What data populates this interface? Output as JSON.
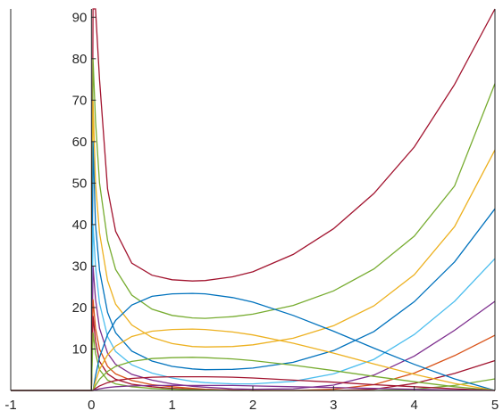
{
  "chart_data": {
    "type": "line",
    "title": "",
    "xlabel": "",
    "ylabel": "",
    "xlim": [
      -1,
      5
    ],
    "ylim": [
      0,
      92
    ],
    "x_ticks": [
      -1,
      0,
      1,
      2,
      3,
      4,
      5
    ],
    "y_ticks": [
      10,
      20,
      30,
      40,
      50,
      60,
      70,
      80,
      90
    ],
    "x_tick_labels": [
      "-1",
      "0",
      "1",
      "2",
      "3",
      "4",
      "5"
    ],
    "y_tick_labels": [
      "10",
      "20",
      "30",
      "40",
      "50",
      "60",
      "70",
      "80",
      "90"
    ],
    "grid": false,
    "legend": "none",
    "x": [
      0.02,
      0.05,
      0.1,
      0.2,
      0.3,
      0.5,
      0.75,
      1.0,
      1.25,
      1.41,
      1.75,
      2.0,
      2.5,
      3.0,
      3.5,
      4.0,
      4.5,
      5.0
    ],
    "series": [
      {
        "color": "#A2142F",
        "values": [
          92,
          92,
          75,
          48.6,
          38.4,
          30.7,
          27.8,
          26.7,
          26.4,
          26.5,
          27.4,
          28.6,
          32.8,
          39.0,
          47.5,
          58.7,
          73.8,
          92.0
        ]
      },
      {
        "color": "#77AC30",
        "values": [
          80,
          65,
          50,
          36.2,
          29.2,
          23.0,
          19.6,
          18.1,
          17.5,
          17.4,
          17.8,
          18.4,
          20.5,
          24.0,
          29.3,
          37.2,
          49.3,
          74.0
        ]
      },
      {
        "color": "#EDB120",
        "values": [
          70,
          50,
          38,
          26.5,
          20.8,
          15.8,
          12.8,
          11.3,
          10.6,
          10.5,
          10.6,
          11.0,
          12.6,
          15.6,
          20.4,
          27.9,
          39.5,
          58.0
        ]
      },
      {
        "color": "#0072BD",
        "values": [
          60,
          40,
          29,
          18.8,
          13.9,
          9.5,
          7.1,
          5.8,
          5.2,
          5.0,
          5.1,
          5.4,
          6.8,
          9.6,
          14.2,
          21.4,
          31.0,
          43.8
        ]
      },
      {
        "color": "#4DBEEE",
        "values": [
          40,
          30,
          21,
          13.0,
          9.4,
          6.2,
          4.2,
          3.0,
          2.2,
          1.9,
          1.6,
          1.6,
          2.2,
          4.0,
          7.5,
          13.5,
          21.5,
          31.8
        ]
      },
      {
        "color": "#7E2F8E",
        "values": [
          30,
          22,
          15,
          9.0,
          6.3,
          3.9,
          2.5,
          1.6,
          1.0,
          0.8,
          0.4,
          0.3,
          0.4,
          1.3,
          3.7,
          8.3,
          14.5,
          21.5
        ]
      },
      {
        "color": "#D95319",
        "values": [
          22,
          15,
          10,
          5.8,
          4.0,
          2.4,
          1.4,
          0.9,
          0.5,
          0.3,
          0.1,
          0.0,
          0.0,
          0.3,
          1.4,
          4.2,
          8.4,
          13.3
        ]
      },
      {
        "color": "#A2142F",
        "values": [
          18,
          12,
          7,
          4.0,
          2.7,
          1.5,
          0.9,
          0.5,
          0.3,
          0.2,
          0.1,
          0.0,
          0.0,
          0.0,
          0.3,
          1.7,
          4.1,
          7.2
        ]
      },
      {
        "color": "#77AC30",
        "values": [
          14,
          9,
          5,
          2.5,
          1.6,
          0.9,
          0.5,
          0.3,
          0.2,
          0.1,
          0.0,
          0.0,
          0.0,
          0.0,
          0.0,
          0.3,
          1.2,
          2.8
        ]
      },
      {
        "color": "#0072BD",
        "values": [
          0,
          3.5,
          8.0,
          13.5,
          16.9,
          20.6,
          22.7,
          23.3,
          23.4,
          23.3,
          22.4,
          21.3,
          18.1,
          14.3,
          10.2,
          6.3,
          2.8,
          0.0
        ]
      },
      {
        "color": "#EDB120",
        "values": [
          0,
          2.2,
          5.1,
          8.6,
          10.7,
          13.0,
          14.3,
          14.7,
          14.8,
          14.7,
          14.1,
          13.4,
          11.4,
          9.0,
          6.4,
          3.9,
          1.7,
          0.0
        ]
      },
      {
        "color": "#77AC30",
        "values": [
          0,
          1.2,
          2.7,
          4.6,
          5.8,
          7.0,
          7.7,
          7.9,
          8.0,
          7.9,
          7.6,
          7.2,
          6.1,
          4.8,
          3.4,
          2.1,
          0.9,
          0.0
        ]
      },
      {
        "color": "#A2142F",
        "values": [
          0,
          0.5,
          1.1,
          1.9,
          2.4,
          2.9,
          3.2,
          3.3,
          3.3,
          3.3,
          3.2,
          3.0,
          2.5,
          2.0,
          1.4,
          0.9,
          0.4,
          0.0
        ]
      },
      {
        "color": "#7E2F8E",
        "values": [
          0,
          0.2,
          0.4,
          0.7,
          0.9,
          1.1,
          1.2,
          1.2,
          1.2,
          1.2,
          1.2,
          1.1,
          0.9,
          0.7,
          0.5,
          0.3,
          0.1,
          0.0
        ]
      }
    ]
  }
}
